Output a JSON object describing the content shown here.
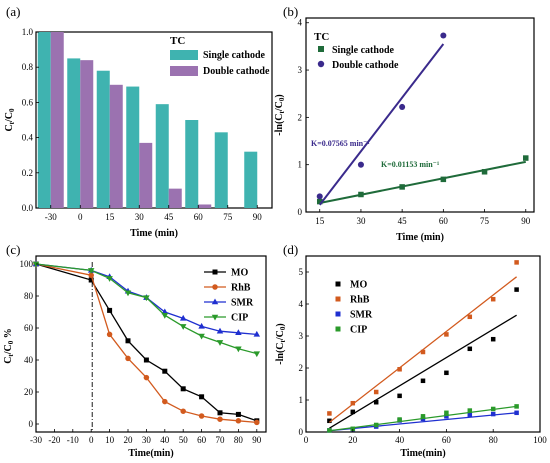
{
  "chart_data": [
    {
      "panel_label": "(a)",
      "type": "bar",
      "title": "TC",
      "xlabel": "Time (min)",
      "ylabel": "C_t/C_0",
      "categories": [
        "-30",
        "0",
        "15",
        "30",
        "45",
        "60",
        "75",
        "90"
      ],
      "ylim": [
        0,
        1.0
      ],
      "yticks": [
        "0.0",
        "0.2",
        "0.4",
        "0.6",
        "0.8",
        "1.0"
      ],
      "series": [
        {
          "name": "Single cathode",
          "color": "#3fb3b0",
          "values": [
            1.0,
            0.85,
            0.78,
            0.69,
            0.59,
            0.5,
            0.43,
            0.32
          ]
        },
        {
          "name": "Double cathode",
          "color": "#9b72b0",
          "values": [
            1.0,
            0.84,
            0.7,
            0.37,
            0.11,
            0.02,
            null,
            null
          ]
        }
      ],
      "legend": "top-right"
    },
    {
      "panel_label": "(b)",
      "type": "scatter",
      "title": "TC",
      "xlabel": "Time (min)",
      "ylabel": "-ln(C_t/C_0)",
      "xlim": [
        10,
        93
      ],
      "ylim": [
        0,
        4.1
      ],
      "xticks": [
        "15",
        "30",
        "45",
        "60",
        "75",
        "90"
      ],
      "yticks": [
        "0",
        "1",
        "2",
        "3",
        "4"
      ],
      "series": [
        {
          "name": "Single cathode",
          "color": "#1f6b3a",
          "marker": "square",
          "x": [
            15,
            30,
            45,
            60,
            75,
            90
          ],
          "y": [
            0.22,
            0.37,
            0.53,
            0.69,
            0.85,
            1.14
          ],
          "fit": {
            "x": [
              15,
              90
            ],
            "y": [
              0.19,
              1.06
            ]
          }
        },
        {
          "name": "Double cathode",
          "color": "#3a2a8c",
          "marker": "circle",
          "x": [
            15,
            30,
            45,
            60
          ],
          "y": [
            0.33,
            1.0,
            2.22,
            3.73
          ],
          "fit": {
            "x": [
              15,
              60
            ],
            "y": [
              0.15,
              3.55
            ]
          }
        }
      ],
      "annotations": [
        "K=0.07565 min⁻¹",
        "K=0.01153 min⁻¹"
      ],
      "legend": "top-left"
    },
    {
      "panel_label": "(c)",
      "type": "line",
      "xlabel": "Time(min)",
      "ylabel": "C_t/C_0 %",
      "xlim": [
        -30,
        95
      ],
      "ylim": [
        -5,
        105
      ],
      "xticks": [
        "-30",
        "-20",
        "-10",
        "0",
        "10",
        "20",
        "30",
        "40",
        "50",
        "60",
        "70",
        "80",
        "90"
      ],
      "yticks": [
        "0",
        "20",
        "40",
        "60",
        "80",
        "100"
      ],
      "x": [
        -30,
        0,
        10,
        20,
        30,
        40,
        50,
        60,
        70,
        80,
        90
      ],
      "series": [
        {
          "name": "MO",
          "color": "#000000",
          "marker": "square",
          "values": [
            100,
            90,
            71,
            52,
            40,
            33,
            22,
            17,
            7,
            6,
            2
          ]
        },
        {
          "name": "RhB",
          "color": "#d25a1e",
          "marker": "circle",
          "values": [
            100,
            93,
            56,
            41,
            29,
            14,
            8,
            5,
            3,
            2,
            1
          ]
        },
        {
          "name": "SMR",
          "color": "#1f2fd0",
          "marker": "triangle-up",
          "values": [
            100,
            96,
            92,
            83,
            79,
            70,
            66,
            61,
            58,
            57,
            56
          ]
        },
        {
          "name": "CIP",
          "color": "#2a9a2a",
          "marker": "triangle-down",
          "values": [
            100,
            96,
            91,
            82,
            79,
            68,
            61,
            55,
            51,
            47,
            44
          ]
        }
      ],
      "legend": "top-right"
    },
    {
      "panel_label": "(d)",
      "type": "scatter",
      "xlabel": "Time(min)",
      "ylabel": "-ln(C_t/C_0)",
      "xlim": [
        0,
        100
      ],
      "ylim": [
        0,
        5.5
      ],
      "xticks": [
        "0",
        "20",
        "40",
        "60",
        "80",
        "100"
      ],
      "yticks": [
        "0",
        "1",
        "2",
        "3",
        "4",
        "5"
      ],
      "series": [
        {
          "name": "MO",
          "color": "#000000",
          "marker": "square",
          "x": [
            10,
            20,
            30,
            40,
            50,
            60,
            70,
            80,
            90
          ],
          "y": [
            0.35,
            0.63,
            0.93,
            1.13,
            1.6,
            1.85,
            2.6,
            2.9,
            4.45
          ],
          "fit": {
            "x": [
              10,
              90
            ],
            "y": [
              0.12,
              3.65
            ]
          }
        },
        {
          "name": "RhB",
          "color": "#d25a1e",
          "marker": "square",
          "x": [
            10,
            20,
            30,
            40,
            50,
            60,
            70,
            80,
            90
          ],
          "y": [
            0.58,
            0.9,
            1.25,
            1.96,
            2.5,
            3.05,
            3.6,
            4.15,
            5.3
          ],
          "fit": {
            "x": [
              10,
              90
            ],
            "y": [
              0.3,
              4.85
            ]
          }
        },
        {
          "name": "SMR",
          "color": "#1f2fd0",
          "marker": "square",
          "x": [
            10,
            20,
            30,
            40,
            50,
            60,
            70,
            80,
            90
          ],
          "y": [
            0.05,
            0.09,
            0.17,
            0.36,
            0.41,
            0.49,
            0.54,
            0.56,
            0.6
          ],
          "fit": {
            "x": [
              10,
              90
            ],
            "y": [
              0.04,
              0.6
            ]
          }
        },
        {
          "name": "CIP",
          "color": "#2a9a2a",
          "marker": "square",
          "x": [
            10,
            20,
            30,
            40,
            50,
            60,
            70,
            80,
            90
          ],
          "y": [
            0.05,
            0.1,
            0.22,
            0.39,
            0.49,
            0.6,
            0.67,
            0.72,
            0.8
          ],
          "fit": {
            "x": [
              10,
              90
            ],
            "y": [
              0.04,
              0.8
            ]
          }
        }
      ],
      "legend": "top-left"
    }
  ]
}
